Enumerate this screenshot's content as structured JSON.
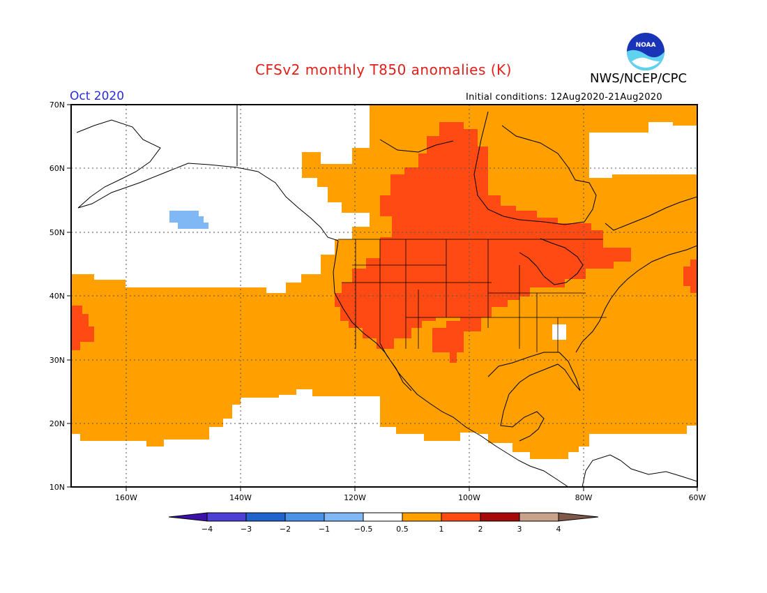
{
  "header": {
    "title": "CFSv2 monthly T850 anomalies (K)",
    "agency": "NWS/NCEP/CPC",
    "month": "Oct 2020",
    "init_conditions": "Initial conditions: 12Aug2020-21Aug2020",
    "logo_text": "NOAA"
  },
  "axes": {
    "lat_labels": [
      "70N",
      "60N",
      "50N",
      "40N",
      "30N",
      "20N",
      "10N"
    ],
    "lon_labels": [
      "160W",
      "140W",
      "120W",
      "100W",
      "80W",
      "60W"
    ]
  },
  "legend": {
    "tick_labels": [
      "−4",
      "−3",
      "−2",
      "−1",
      "−0.5",
      "0.5",
      "1",
      "2",
      "3",
      "4"
    ],
    "colors": [
      "#3a12a8",
      "#4b3fd4",
      "#1f63cc",
      "#4a92e6",
      "#7fb8f5",
      "#ffffff",
      "#ffa000",
      "#ff4a14",
      "#a50a0a",
      "#c8a28a",
      "#80584a"
    ]
  },
  "map_colors": {
    "warm": "#ffa000",
    "hot": "#ff4a14",
    "cool": "#7fb8f5"
  }
}
